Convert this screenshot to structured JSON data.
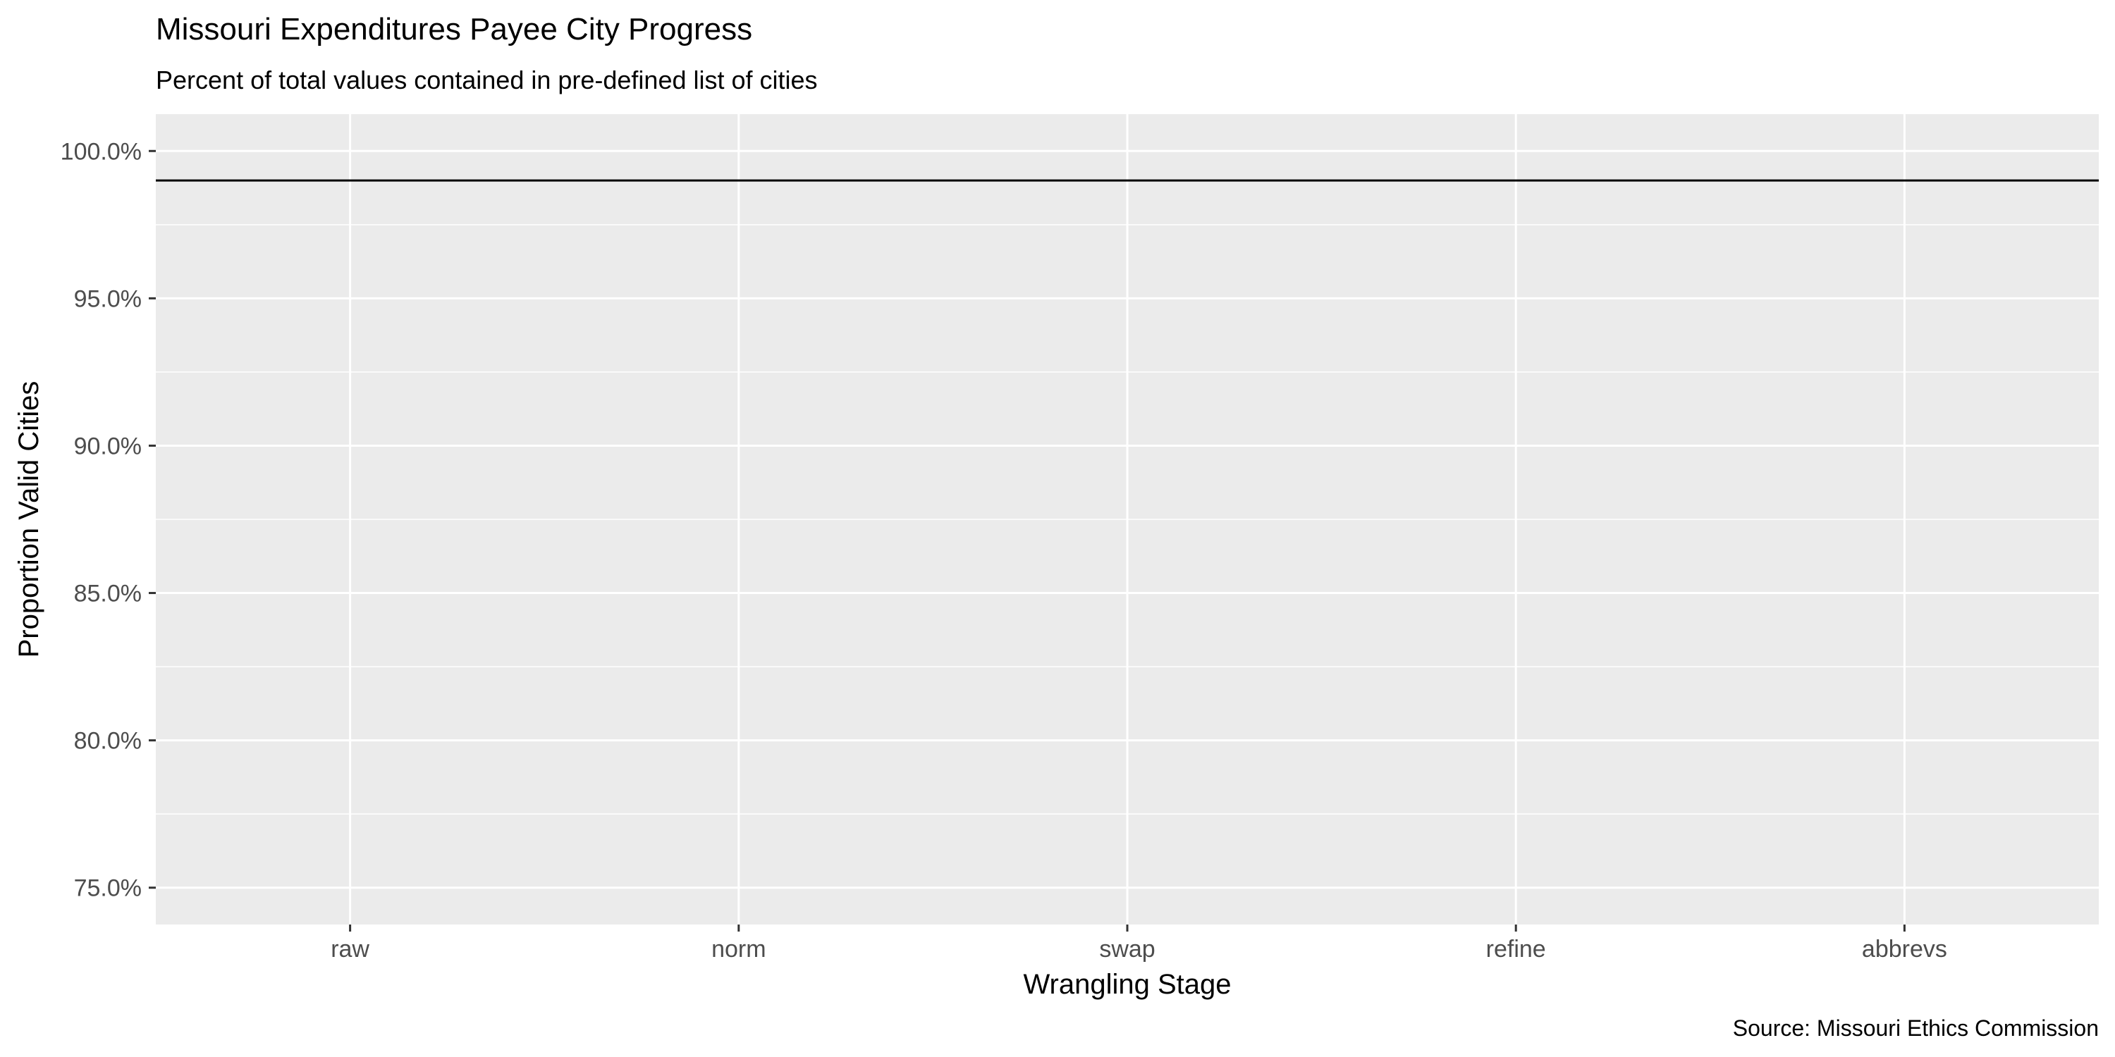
{
  "chart_data": {
    "type": "bar",
    "title": "Missouri Expenditures Payee City Progress",
    "subtitle": "Percent of total values contained in pre-defined list of cities",
    "xlabel": "Wrangling Stage",
    "ylabel": "Proportion Valid Cities",
    "caption": "Source: Missouri Ethics Commission",
    "categories": [
      "raw",
      "norm",
      "swap",
      "refine",
      "abbrevs"
    ],
    "values": [
      null,
      null,
      null,
      null,
      null
    ],
    "ylim": [
      0.7375,
      1.0125
    ],
    "yticks": [
      0.75,
      0.8,
      0.85,
      0.9,
      0.95,
      1.0
    ],
    "ytick_labels": [
      "75.0%",
      "80.0%",
      "85.0%",
      "90.0%",
      "95.0%",
      "100.0%"
    ],
    "reference_line": 0.99,
    "grid": true,
    "legend": "none",
    "colors": {
      "panel_background": "#ebebeb",
      "grid": "#ffffff",
      "reference_line": "#000000",
      "tick_label": "#4d4d4d",
      "tick_mark": "#333333"
    }
  }
}
